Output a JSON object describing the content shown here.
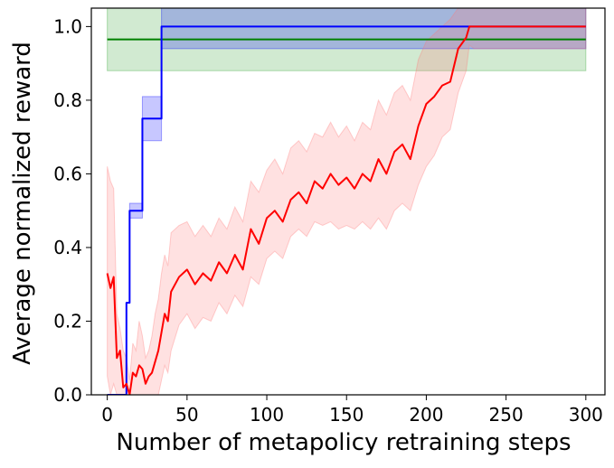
{
  "chart_data": {
    "type": "line",
    "title": "",
    "xlabel": "Number of metapolicy retraining steps",
    "ylabel": "Average normalized reward",
    "xlim": [
      -10,
      312
    ],
    "ylim": [
      0.0,
      1.05
    ],
    "xticks": [
      0,
      50,
      100,
      150,
      200,
      250,
      300
    ],
    "yticks": [
      0.0,
      0.2,
      0.4,
      0.6,
      0.8,
      1.0
    ],
    "xtick_labels": [
      "0",
      "50",
      "100",
      "150",
      "200",
      "250",
      "300"
    ],
    "ytick_labels": [
      "0.0",
      "0.2",
      "0.4",
      "0.6",
      "0.8",
      "1.0"
    ],
    "grid": false,
    "legend": null,
    "series": [
      {
        "color": "#008000",
        "band_color": "#2ca02c",
        "x": [
          0,
          300
        ],
        "y": [
          0.965,
          0.965
        ],
        "y_lower": [
          0.88,
          0.88
        ],
        "y_upper": [
          1.05,
          1.05
        ]
      },
      {
        "color": "#0000ff",
        "band_color": "#0000ff",
        "step": true,
        "x": [
          0,
          10,
          12,
          14,
          20,
          22,
          34,
          300
        ],
        "y": [
          0.0,
          0.0,
          0.25,
          0.5,
          0.5,
          0.75,
          1.0,
          1.0
        ],
        "y_lower": [
          0.0,
          0.0,
          0.25,
          0.48,
          0.48,
          0.69,
          0.94,
          0.94
        ],
        "y_upper": [
          0.0,
          0.0,
          0.25,
          0.52,
          0.52,
          0.81,
          1.05,
          1.05
        ]
      },
      {
        "color": "#ff0000",
        "band_color": "#ff7777",
        "x": [
          0,
          2,
          4,
          6,
          8,
          10,
          12,
          14,
          16,
          18,
          20,
          22,
          24,
          26,
          28,
          30,
          32,
          34,
          36,
          38,
          40,
          45,
          50,
          55,
          60,
          65,
          70,
          75,
          80,
          85,
          90,
          95,
          100,
          105,
          110,
          115,
          120,
          125,
          130,
          135,
          140,
          145,
          150,
          155,
          160,
          165,
          170,
          175,
          180,
          185,
          190,
          195,
          200,
          205,
          210,
          215,
          220,
          225,
          227,
          230,
          240,
          250,
          260,
          270,
          280,
          290,
          300
        ],
        "y": [
          0.33,
          0.29,
          0.32,
          0.1,
          0.12,
          0.02,
          0.03,
          0.0,
          0.06,
          0.05,
          0.08,
          0.07,
          0.03,
          0.05,
          0.06,
          0.09,
          0.12,
          0.17,
          0.22,
          0.2,
          0.28,
          0.32,
          0.34,
          0.3,
          0.33,
          0.31,
          0.36,
          0.33,
          0.38,
          0.34,
          0.45,
          0.41,
          0.48,
          0.5,
          0.47,
          0.53,
          0.55,
          0.52,
          0.58,
          0.56,
          0.6,
          0.57,
          0.59,
          0.56,
          0.6,
          0.58,
          0.64,
          0.6,
          0.66,
          0.68,
          0.64,
          0.73,
          0.79,
          0.81,
          0.84,
          0.85,
          0.94,
          0.97,
          1.0,
          1.0,
          1.0,
          1.0,
          1.0,
          1.0,
          1.0,
          1.0,
          1.0
        ],
        "y_lower": [
          0.05,
          0.0,
          0.03,
          0.0,
          0.0,
          0.0,
          0.0,
          0.0,
          0.0,
          0.0,
          0.0,
          0.0,
          0.0,
          0.0,
          0.0,
          0.0,
          0.0,
          0.04,
          0.08,
          0.06,
          0.12,
          0.19,
          0.22,
          0.18,
          0.21,
          0.2,
          0.25,
          0.22,
          0.27,
          0.24,
          0.32,
          0.3,
          0.37,
          0.39,
          0.37,
          0.43,
          0.45,
          0.43,
          0.47,
          0.46,
          0.47,
          0.45,
          0.46,
          0.45,
          0.47,
          0.45,
          0.48,
          0.45,
          0.5,
          0.52,
          0.5,
          0.57,
          0.62,
          0.65,
          0.7,
          0.72,
          0.82,
          0.88,
          0.95,
          0.94,
          0.94,
          0.94,
          0.94,
          0.94,
          0.94,
          0.94,
          0.94
        ],
        "y_upper": [
          0.62,
          0.58,
          0.56,
          0.22,
          0.18,
          0.12,
          0.1,
          0.04,
          0.14,
          0.12,
          0.2,
          0.16,
          0.1,
          0.12,
          0.16,
          0.22,
          0.26,
          0.33,
          0.38,
          0.35,
          0.44,
          0.46,
          0.47,
          0.43,
          0.46,
          0.43,
          0.48,
          0.45,
          0.51,
          0.47,
          0.58,
          0.55,
          0.61,
          0.64,
          0.6,
          0.67,
          0.69,
          0.66,
          0.71,
          0.7,
          0.74,
          0.7,
          0.73,
          0.69,
          0.74,
          0.72,
          0.8,
          0.76,
          0.82,
          0.84,
          0.8,
          0.91,
          0.96,
          0.98,
          1.0,
          1.02,
          1.05,
          1.05,
          1.05,
          1.05,
          1.05,
          1.05,
          1.05,
          1.05,
          1.05,
          1.05,
          1.05
        ]
      }
    ]
  }
}
